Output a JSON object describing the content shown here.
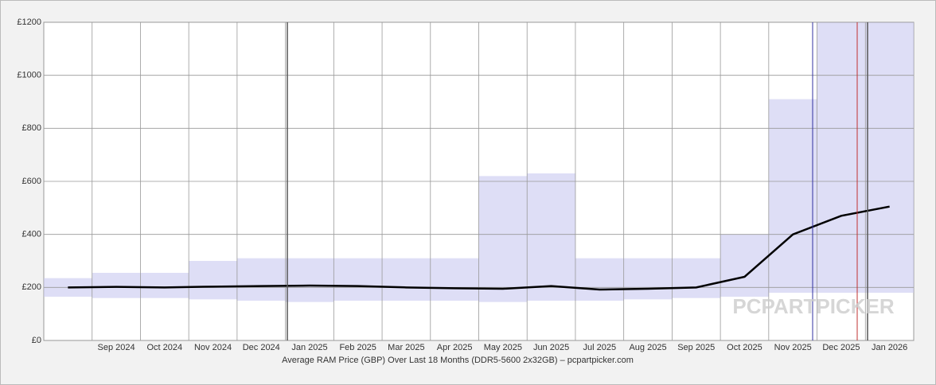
{
  "chart_data": {
    "type": "line",
    "title": "Average RAM Price (GBP) Over Last 18 Months (DDR5-5600 2x32GB) – pcpartpicker.com",
    "watermark": "PCPARTPICKER",
    "categories": [
      null,
      "Sep 2024",
      "Oct 2024",
      "Nov 2024",
      "Dec 2024",
      "Jan 2025",
      "Feb 2025",
      "Mar 2025",
      "Apr 2025",
      "May 2025",
      "Jun 2025",
      "Jul 2025",
      "Aug 2025",
      "Sep 2025",
      "Oct 2025",
      "Nov 2025",
      "Dec 2025",
      "Jan 2026"
    ],
    "series": [
      {
        "color": "#000000",
        "values": [
          200,
          202,
          200,
          203,
          205,
          207,
          205,
          200,
          197,
          195,
          205,
          192,
          195,
          200,
          240,
          400,
          470,
          505
        ]
      }
    ],
    "range_low": [
      165,
      160,
      160,
      155,
      150,
      145,
      150,
      150,
      150,
      145,
      150,
      150,
      155,
      160,
      165,
      180,
      180,
      180
    ],
    "range_high": [
      235,
      255,
      255,
      300,
      310,
      310,
      310,
      310,
      310,
      620,
      630,
      310,
      310,
      310,
      400,
      910,
      1200,
      1200
    ],
    "range_color": "#c8c8f0",
    "ylim": [
      0,
      1200
    ],
    "yticks": [
      {
        "value": 0,
        "label": "£0"
      },
      {
        "value": 200,
        "label": "£200"
      },
      {
        "value": 400,
        "label": "£400"
      },
      {
        "value": 600,
        "label": "£600"
      },
      {
        "value": 800,
        "label": "£800"
      },
      {
        "value": 1000,
        "label": "£1000"
      },
      {
        "value": 1200,
        "label": "£1200"
      }
    ],
    "grid": true
  }
}
